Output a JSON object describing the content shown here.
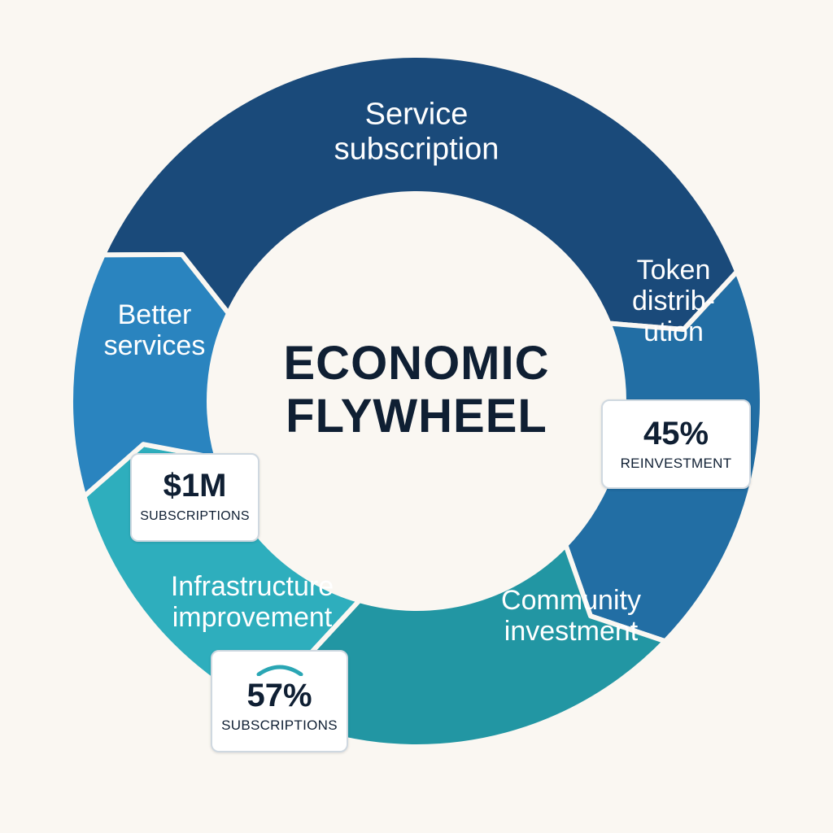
{
  "diagram": {
    "center_title": [
      "ECONOMIC",
      "FLYWHEEL"
    ],
    "segments": [
      {
        "id": "service-subscription",
        "lines": [
          "Service",
          "subscription"
        ],
        "color": "#1a4a7a"
      },
      {
        "id": "token-distribution",
        "lines": [
          "Token",
          "distrib-",
          "ution"
        ],
        "color": "#226ea4"
      },
      {
        "id": "community-investment",
        "lines": [
          "Community",
          "investment"
        ],
        "color": "#2296a3"
      },
      {
        "id": "infrastructure-improvement",
        "lines": [
          "Infrastructure",
          "improvement"
        ],
        "color": "#2eaebd"
      },
      {
        "id": "better-services",
        "lines": [
          "Better",
          "services"
        ],
        "color": "#2a84bf"
      }
    ],
    "stat_cards": [
      {
        "id": "reinvestment",
        "value": "45%",
        "caption": "REINVESTMENT"
      },
      {
        "id": "subscriptions-amount",
        "value": "$1M",
        "caption": "SUBSCRIPTIONS"
      },
      {
        "id": "subscriptions-percent",
        "value": "57%",
        "caption": "SUBSCRIPTIONS",
        "icon": "gauge-arc-icon"
      }
    ]
  }
}
